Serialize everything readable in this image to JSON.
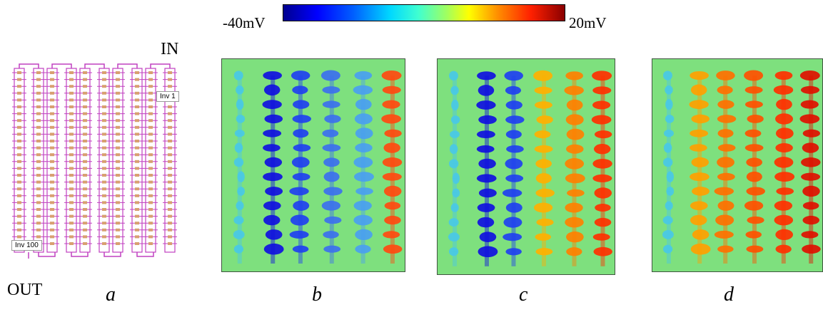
{
  "colorbar": {
    "min_label": "-40mV",
    "max_label": "20mV",
    "colors": [
      "#00008f",
      "#0000ff",
      "#00d8ff",
      "#a0ff60",
      "#ffff00",
      "#ff2000",
      "#8a0000"
    ]
  },
  "layout_panel": {
    "in_label": "IN",
    "out_label": "OUT",
    "inv_first": "Inv 1",
    "inv_last": "Inv 100",
    "wire_color": "#c040c0"
  },
  "panels": [
    {
      "letter": "a"
    },
    {
      "letter": "b"
    },
    {
      "letter": "c"
    },
    {
      "letter": "d"
    }
  ],
  "heatmaps": {
    "background_color": "#7ee07e",
    "b": {
      "column_colors": [
        "#49c8e6",
        "#1010e0",
        "#2040f0",
        "#3c70ee",
        "#4aa0f0",
        "#ff4a10"
      ]
    },
    "c": {
      "column_colors": [
        "#49c8e6",
        "#1010e0",
        "#2040f0",
        "#ffb000",
        "#ff8000",
        "#ff3000"
      ]
    },
    "d": {
      "column_colors": [
        "#49c8e6",
        "#ffa000",
        "#ff7000",
        "#ff5000",
        "#ff3000",
        "#e01000"
      ]
    }
  }
}
